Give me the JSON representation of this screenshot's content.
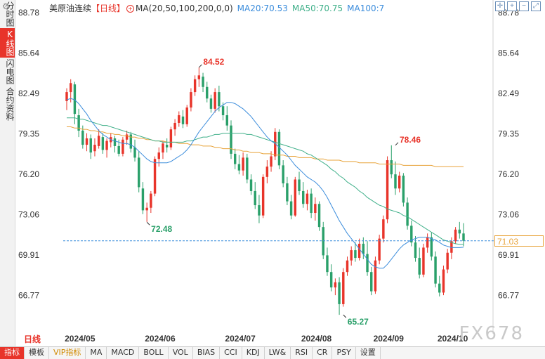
{
  "sidebar": {
    "tabs": [
      {
        "label": "分时图",
        "active": false
      },
      {
        "label": "K线图",
        "active": true
      },
      {
        "label": "闪电图",
        "active": false
      },
      {
        "label": "合约资料",
        "active": false
      }
    ]
  },
  "header": {
    "instrument": "美原油连续",
    "period": "【日线】",
    "ma_params": "MA(20,50,100,200,0,0)",
    "ma20": "MA20:70.53",
    "ma50": "MA50:70.75",
    "ma100": "MA100:7"
  },
  "period_label": "日线",
  "watermark": "FX678",
  "current_price": "71.03",
  "colors": {
    "up": "#e8342a",
    "down": "#2aa06a",
    "ma20": "#3c8ddc",
    "ma50": "#40b08a",
    "ma100": "#e8a33a",
    "accent": "#e8342a"
  },
  "bottom_tabs": [
    "指标",
    "模板",
    "VIP指标",
    "MA",
    "MACD",
    "BOLL",
    "VOL",
    "BIAS",
    "CCI",
    "KDJ",
    "LW&",
    "RSI",
    "CR",
    "PSY",
    "设置"
  ],
  "chart_data": {
    "type": "candlestick",
    "y_ticks": [
      "88.78",
      "85.64",
      "82.49",
      "79.35",
      "76.20",
      "73.06",
      "69.91",
      "66.77"
    ],
    "ylim": [
      63.8,
      89.0
    ],
    "x_ticks": [
      "2024/05",
      "2024/06",
      "2024/07",
      "2024/08",
      "2024/09",
      "2024/10"
    ],
    "annotations": [
      {
        "label": "84.52",
        "value": 84.52,
        "kind": "high"
      },
      {
        "label": "72.48",
        "value": 72.48,
        "kind": "low"
      },
      {
        "label": "78.46",
        "value": 78.46,
        "kind": "high"
      },
      {
        "label": "65.27",
        "value": 65.27,
        "kind": "low"
      }
    ],
    "current_price": 71.03,
    "ohlc": [
      [
        81.9,
        82.9,
        81.2,
        82.6
      ],
      [
        82.6,
        83.6,
        81.8,
        83.3
      ],
      [
        83.2,
        83.4,
        80.1,
        80.9
      ],
      [
        80.8,
        81.3,
        79.1,
        79.6
      ],
      [
        79.6,
        80.0,
        78.2,
        78.5
      ],
      [
        78.5,
        79.4,
        78.0,
        79.0
      ],
      [
        79.0,
        79.3,
        77.4,
        77.9
      ],
      [
        78.0,
        79.0,
        77.6,
        78.5
      ],
      [
        78.4,
        79.7,
        78.2,
        79.2
      ],
      [
        79.1,
        79.4,
        77.8,
        78.1
      ],
      [
        78.1,
        79.0,
        77.5,
        78.8
      ],
      [
        78.7,
        79.4,
        78.3,
        79.1
      ],
      [
        79.0,
        79.2,
        77.9,
        78.4
      ],
      [
        78.4,
        78.9,
        77.6,
        77.8
      ],
      [
        77.8,
        79.1,
        77.6,
        78.9
      ],
      [
        78.9,
        79.6,
        78.5,
        79.3
      ],
      [
        79.3,
        79.5,
        77.9,
        78.2
      ],
      [
        78.3,
        78.9,
        77.2,
        77.5
      ],
      [
        77.5,
        78.0,
        74.8,
        75.2
      ],
      [
        75.1,
        75.6,
        73.1,
        73.4
      ],
      [
        73.4,
        74.0,
        72.5,
        73.6
      ],
      [
        73.6,
        74.9,
        73.2,
        74.7
      ],
      [
        74.7,
        77.6,
        74.5,
        77.4
      ],
      [
        77.4,
        78.3,
        76.8,
        77.9
      ],
      [
        77.9,
        78.8,
        77.4,
        78.6
      ],
      [
        78.5,
        79.0,
        77.9,
        78.3
      ],
      [
        78.3,
        79.9,
        78.1,
        79.7
      ],
      [
        79.7,
        80.5,
        79.2,
        80.2
      ],
      [
        80.2,
        81.1,
        79.9,
        80.8
      ],
      [
        80.7,
        81.2,
        79.8,
        80.1
      ],
      [
        80.1,
        81.6,
        79.9,
        81.4
      ],
      [
        81.4,
        82.9,
        81.1,
        82.6
      ],
      [
        82.6,
        83.9,
        82.3,
        83.6
      ],
      [
        83.6,
        84.52,
        83.0,
        83.9
      ],
      [
        83.8,
        84.1,
        82.6,
        83.0
      ],
      [
        83.0,
        83.4,
        81.8,
        82.1
      ],
      [
        82.1,
        82.4,
        81.0,
        81.3
      ],
      [
        81.3,
        82.9,
        81.0,
        82.6
      ],
      [
        82.6,
        83.1,
        81.1,
        81.5
      ],
      [
        81.5,
        81.8,
        80.4,
        80.8
      ],
      [
        80.8,
        81.5,
        79.6,
        80.0
      ],
      [
        80.0,
        80.4,
        77.4,
        77.8
      ],
      [
        77.8,
        78.2,
        76.6,
        77.0
      ],
      [
        77.0,
        77.7,
        76.2,
        76.5
      ],
      [
        76.5,
        77.9,
        76.1,
        77.5
      ],
      [
        77.5,
        77.8,
        75.5,
        75.8
      ],
      [
        75.8,
        76.2,
        74.6,
        74.9
      ],
      [
        74.9,
        75.6,
        73.5,
        73.8
      ],
      [
        73.8,
        74.6,
        72.4,
        73.0
      ],
      [
        73.0,
        76.2,
        72.8,
        76.0
      ],
      [
        76.0,
        77.3,
        75.5,
        76.8
      ],
      [
        76.8,
        78.0,
        76.4,
        77.6
      ],
      [
        77.6,
        79.8,
        77.3,
        79.5
      ],
      [
        79.5,
        79.7,
        76.6,
        76.9
      ],
      [
        76.9,
        77.3,
        75.2,
        75.5
      ],
      [
        75.5,
        76.0,
        73.8,
        74.1
      ],
      [
        74.1,
        74.6,
        72.7,
        73.0
      ],
      [
        73.0,
        76.0,
        72.9,
        75.8
      ],
      [
        75.8,
        76.4,
        74.6,
        74.9
      ],
      [
        74.9,
        75.6,
        73.6,
        73.9
      ],
      [
        73.9,
        75.0,
        73.4,
        74.7
      ],
      [
        74.7,
        75.1,
        72.8,
        73.2
      ],
      [
        73.2,
        74.4,
        72.6,
        73.9
      ],
      [
        73.9,
        74.1,
        71.8,
        72.1
      ],
      [
        72.1,
        72.5,
        69.6,
        69.9
      ],
      [
        69.9,
        70.5,
        68.3,
        68.6
      ],
      [
        68.6,
        69.2,
        67.1,
        67.4
      ],
      [
        67.4,
        68.1,
        66.8,
        67.8
      ],
      [
        67.8,
        68.2,
        65.27,
        66.1
      ],
      [
        66.1,
        68.9,
        65.9,
        68.6
      ],
      [
        68.6,
        69.8,
        68.3,
        69.5
      ],
      [
        69.5,
        70.6,
        69.1,
        70.3
      ],
      [
        70.3,
        70.9,
        69.4,
        69.7
      ],
      [
        69.7,
        71.2,
        69.5,
        70.8
      ],
      [
        70.8,
        71.3,
        69.6,
        70.0
      ],
      [
        70.0,
        71.0,
        68.3,
        68.6
      ],
      [
        68.6,
        69.0,
        66.8,
        67.1
      ],
      [
        67.1,
        69.8,
        66.9,
        69.5
      ],
      [
        69.5,
        71.5,
        69.2,
        71.2
      ],
      [
        71.2,
        73.0,
        70.9,
        72.7
      ],
      [
        72.7,
        77.6,
        72.4,
        77.3
      ],
      [
        77.3,
        78.46,
        75.9,
        76.2
      ],
      [
        76.2,
        77.2,
        74.6,
        75.1
      ],
      [
        75.1,
        76.4,
        74.8,
        76.1
      ],
      [
        76.1,
        76.3,
        73.7,
        74.0
      ],
      [
        74.0,
        74.4,
        71.9,
        72.2
      ],
      [
        72.2,
        72.6,
        70.6,
        70.9
      ],
      [
        70.9,
        71.4,
        69.4,
        69.7
      ],
      [
        69.7,
        70.5,
        68.1,
        68.4
      ],
      [
        68.4,
        70.8,
        68.2,
        70.5
      ],
      [
        70.5,
        71.6,
        70.1,
        71.3
      ],
      [
        71.3,
        71.7,
        69.5,
        69.8
      ],
      [
        69.8,
        70.2,
        67.4,
        67.7
      ],
      [
        67.7,
        68.3,
        66.7,
        67.0
      ],
      [
        67.0,
        69.1,
        66.8,
        68.8
      ],
      [
        68.8,
        70.4,
        68.5,
        70.1
      ],
      [
        70.1,
        71.3,
        69.6,
        71.0
      ],
      [
        71.0,
        72.1,
        70.8,
        71.9
      ],
      [
        71.9,
        72.5,
        71.2,
        71.6
      ],
      [
        71.6,
        72.4,
        70.6,
        71.03
      ]
    ],
    "ma20": [
      82.0,
      82.1,
      82.0,
      81.7,
      81.3,
      80.9,
      80.4,
      80.0,
      79.6,
      79.3,
      79.1,
      78.9,
      78.8,
      78.7,
      78.6,
      78.6,
      78.5,
      78.3,
      78.0,
      77.7,
      77.4,
      77.2,
      77.1,
      77.1,
      77.1,
      77.1,
      77.2,
      77.4,
      77.6,
      77.8,
      78.1,
      78.5,
      79.0,
      79.5,
      79.9,
      80.3,
      80.7,
      81.1,
      81.4,
      81.6,
      81.8,
      81.8,
      81.7,
      81.5,
      81.3,
      81.0,
      80.7,
      80.3,
      79.9,
      79.5,
      79.1,
      78.8,
      78.6,
      78.3,
      78.0,
      77.7,
      77.3,
      76.9,
      76.6,
      76.3,
      76.0,
      75.8,
      75.6,
      75.3,
      74.9,
      74.4,
      73.8,
      73.2,
      72.6,
      72.1,
      71.6,
      71.2,
      70.8,
      70.4,
      70.0,
      69.6,
      69.2,
      69.0,
      68.9,
      68.9,
      69.2,
      69.6,
      70.0,
      70.4,
      70.7,
      70.9,
      71.1,
      71.2,
      71.3,
      71.3,
      71.3,
      71.2,
      71.1,
      70.9,
      70.7,
      70.6,
      70.5,
      70.5,
      70.5,
      70.53
    ],
    "ma50": [
      80.6,
      80.6,
      80.6,
      80.5,
      80.5,
      80.4,
      80.3,
      80.2,
      80.1,
      80.0,
      80.0,
      79.9,
      79.8,
      79.7,
      79.6,
      79.5,
      79.4,
      79.3,
      79.2,
      79.1,
      79.0,
      78.9,
      78.8,
      78.8,
      78.7,
      78.7,
      78.7,
      78.7,
      78.7,
      78.7,
      78.8,
      78.8,
      78.9,
      79.0,
      79.1,
      79.1,
      79.2,
      79.3,
      79.3,
      79.4,
      79.4,
      79.4,
      79.4,
      79.4,
      79.4,
      79.3,
      79.3,
      79.2,
      79.1,
      79.0,
      78.9,
      78.8,
      78.7,
      78.6,
      78.5,
      78.4,
      78.3,
      78.2,
      78.1,
      78.0,
      77.8,
      77.7,
      77.5,
      77.3,
      77.1,
      76.9,
      76.6,
      76.4,
      76.1,
      75.9,
      75.6,
      75.4,
      75.2,
      74.9,
      74.7,
      74.4,
      74.2,
      74.0,
      73.8,
      73.7,
      73.5,
      73.4,
      73.3,
      73.2,
      73.0,
      72.9,
      72.7,
      72.5,
      72.3,
      72.1,
      71.9,
      71.7,
      71.5,
      71.3,
      71.1,
      71.0,
      70.9,
      70.8,
      70.75,
      70.75
    ],
    "ma100": [
      79.9,
      79.9,
      79.8,
      79.8,
      79.7,
      79.7,
      79.6,
      79.6,
      79.5,
      79.5,
      79.4,
      79.4,
      79.3,
      79.3,
      79.2,
      79.2,
      79.1,
      79.1,
      79.0,
      79.0,
      78.9,
      78.9,
      78.8,
      78.8,
      78.8,
      78.7,
      78.7,
      78.7,
      78.6,
      78.6,
      78.6,
      78.5,
      78.5,
      78.5,
      78.4,
      78.4,
      78.4,
      78.3,
      78.3,
      78.2,
      78.2,
      78.2,
      78.1,
      78.1,
      78.0,
      78.0,
      77.9,
      77.9,
      77.9,
      77.8,
      77.8,
      77.8,
      77.7,
      77.7,
      77.7,
      77.6,
      77.6,
      77.6,
      77.5,
      77.5,
      77.5,
      77.5,
      77.4,
      77.4,
      77.4,
      77.3,
      77.3,
      77.3,
      77.3,
      77.2,
      77.2,
      77.2,
      77.2,
      77.1,
      77.1,
      77.1,
      77.1,
      77.1,
      77.0,
      77.0,
      77.0,
      77.0,
      77.0,
      77.0,
      76.9,
      76.9,
      76.9,
      76.9,
      76.9,
      76.9,
      76.9,
      76.9,
      76.8,
      76.8,
      76.8,
      76.8,
      76.8,
      76.8,
      76.8,
      76.8
    ]
  }
}
